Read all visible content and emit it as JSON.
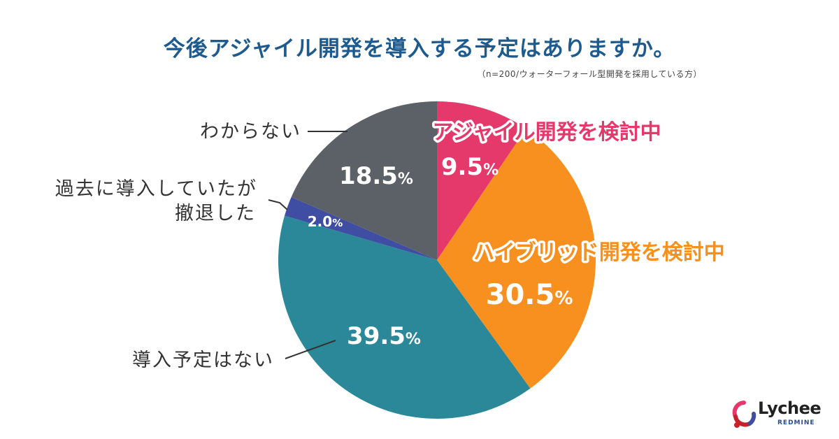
{
  "title": "今後アジャイル開発を導入する予定はありますか。",
  "note": "（n=200/ウォーターフォール型開発を採用している方）",
  "chart_data": {
    "type": "pie",
    "title": "今後アジャイル開発を導入する予定はありますか。",
    "start": "top",
    "direction": "clockwise",
    "unit": "%",
    "slices": [
      {
        "label": "アジャイル開発を検討中",
        "value": 9.5,
        "display": "9.5",
        "color": "#e5386b"
      },
      {
        "label": "ハイブリッド開発を検討中",
        "value": 30.5,
        "display": "30.5",
        "color": "#f7901e"
      },
      {
        "label": "導入予定はない",
        "value": 39.5,
        "display": "39.5",
        "color": "#2b8898"
      },
      {
        "label": "過去に導入していたが撤退した",
        "value": 2.0,
        "display": "2.0",
        "color": "#3f4ea3"
      },
      {
        "label": "わからない",
        "value": 18.5,
        "display": "18.5",
        "color": "#5c6168"
      }
    ]
  },
  "logo": {
    "name": "Lychee",
    "sub": "REDMINE"
  }
}
